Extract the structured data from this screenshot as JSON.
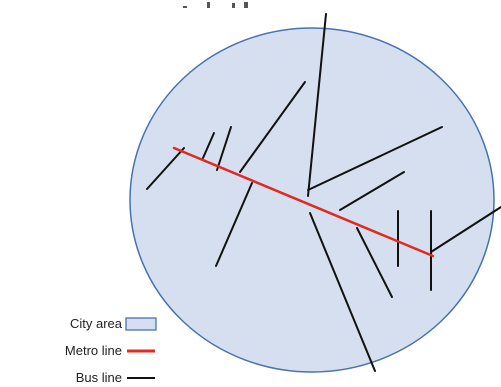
{
  "colors": {
    "city_fill": "#d5dff0",
    "city_stroke": "#4a72ad",
    "metro": "#e02b20",
    "bus": "#111111"
  },
  "legend": {
    "city_area": "City area",
    "metro_line": "Metro line",
    "bus_line": "Bus line"
  }
}
